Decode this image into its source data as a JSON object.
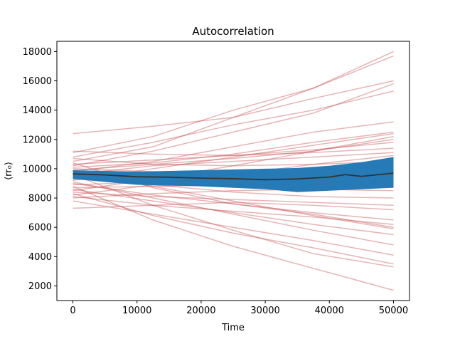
{
  "chart_data": {
    "type": "line",
    "title": "Autocorrelation",
    "xlabel": "Time",
    "ylabel": "⟨rr₀⟩",
    "xlim": [
      -2500,
      52500
    ],
    "ylim": [
      1000,
      18700
    ],
    "xticks": [
      "0",
      "10000",
      "20000",
      "30000",
      "40000",
      "50000"
    ],
    "yticks": [
      "2000",
      "4000",
      "6000",
      "8000",
      "10000",
      "12000",
      "14000",
      "16000",
      "18000"
    ],
    "grid": false,
    "colors": {
      "trajectory": "#c44e52",
      "band": "#1f77b4",
      "mean": "#333333"
    },
    "band": {
      "name": "",
      "x": [
        0,
        10000,
        20000,
        30000,
        35000,
        40000,
        45000,
        50000
      ],
      "lower": [
        9300,
        8900,
        8800,
        8600,
        8400,
        8500,
        8600,
        8700
      ],
      "upper": [
        9900,
        9800,
        9900,
        10000,
        10050,
        10200,
        10450,
        10800
      ]
    },
    "mean": {
      "name": "",
      "x": [
        0,
        5000,
        10000,
        15000,
        20000,
        25000,
        30000,
        35000,
        40000,
        42500,
        45000,
        50000
      ],
      "y": [
        9650,
        9580,
        9450,
        9420,
        9360,
        9320,
        9250,
        9300,
        9430,
        9600,
        9480,
        9700
      ]
    },
    "trajectories": {
      "x": [
        0,
        12500,
        25000,
        37500,
        50000
      ],
      "series": [
        [
          12400,
          12900,
          13500,
          14800,
          16000
        ],
        [
          11100,
          12200,
          14000,
          15500,
          18000
        ],
        [
          10500,
          11500,
          13500,
          15500,
          17700
        ],
        [
          10200,
          11200,
          12500,
          13800,
          15800
        ],
        [
          10800,
          11800,
          13000,
          14000,
          15300
        ],
        [
          9800,
          10500,
          11500,
          12500,
          13200
        ],
        [
          10100,
          10400,
          11000,
          11800,
          12500
        ],
        [
          9200,
          10000,
          10800,
          11600,
          12400
        ],
        [
          9900,
          10300,
          10700,
          11200,
          12000
        ],
        [
          8500,
          9300,
          10200,
          11200,
          12200
        ],
        [
          10300,
          10600,
          10900,
          11300,
          11800
        ],
        [
          11200,
          11000,
          10900,
          11100,
          11400
        ],
        [
          9600,
          10200,
          10500,
          10800,
          11100
        ],
        [
          8200,
          8900,
          9600,
          10300,
          10900
        ],
        [
          10700,
          10300,
          10200,
          10300,
          10500
        ],
        [
          9400,
          9700,
          9900,
          10000,
          10200
        ],
        [
          10000,
          9800,
          9600,
          9600,
          9700
        ],
        [
          8900,
          9100,
          9300,
          9400,
          9500
        ],
        [
          9700,
          9400,
          9200,
          9100,
          9200
        ],
        [
          8700,
          8800,
          8900,
          8900,
          9000
        ],
        [
          9300,
          9000,
          8800,
          8700,
          8800
        ],
        [
          8000,
          8300,
          8500,
          8600,
          8500
        ],
        [
          9500,
          8900,
          8400,
          8100,
          8000
        ],
        [
          8400,
          8100,
          7900,
          7700,
          7500
        ],
        [
          7300,
          7500,
          7700,
          7500,
          7200
        ],
        [
          9000,
          8200,
          7600,
          7000,
          6500
        ],
        [
          8100,
          7500,
          7100,
          6700,
          6200
        ],
        [
          9800,
          8800,
          7800,
          6800,
          5900
        ],
        [
          10400,
          8700,
          7600,
          6900,
          6000
        ],
        [
          8600,
          7800,
          7000,
          6200,
          5500
        ],
        [
          9100,
          8000,
          6900,
          5800,
          4800
        ],
        [
          7800,
          6900,
          6000,
          5100,
          4100
        ],
        [
          8300,
          6800,
          5600,
          4600,
          3500
        ],
        [
          9600,
          7500,
          5800,
          4200,
          3300
        ],
        [
          8800,
          6500,
          4700,
          3200,
          1700
        ]
      ]
    }
  }
}
